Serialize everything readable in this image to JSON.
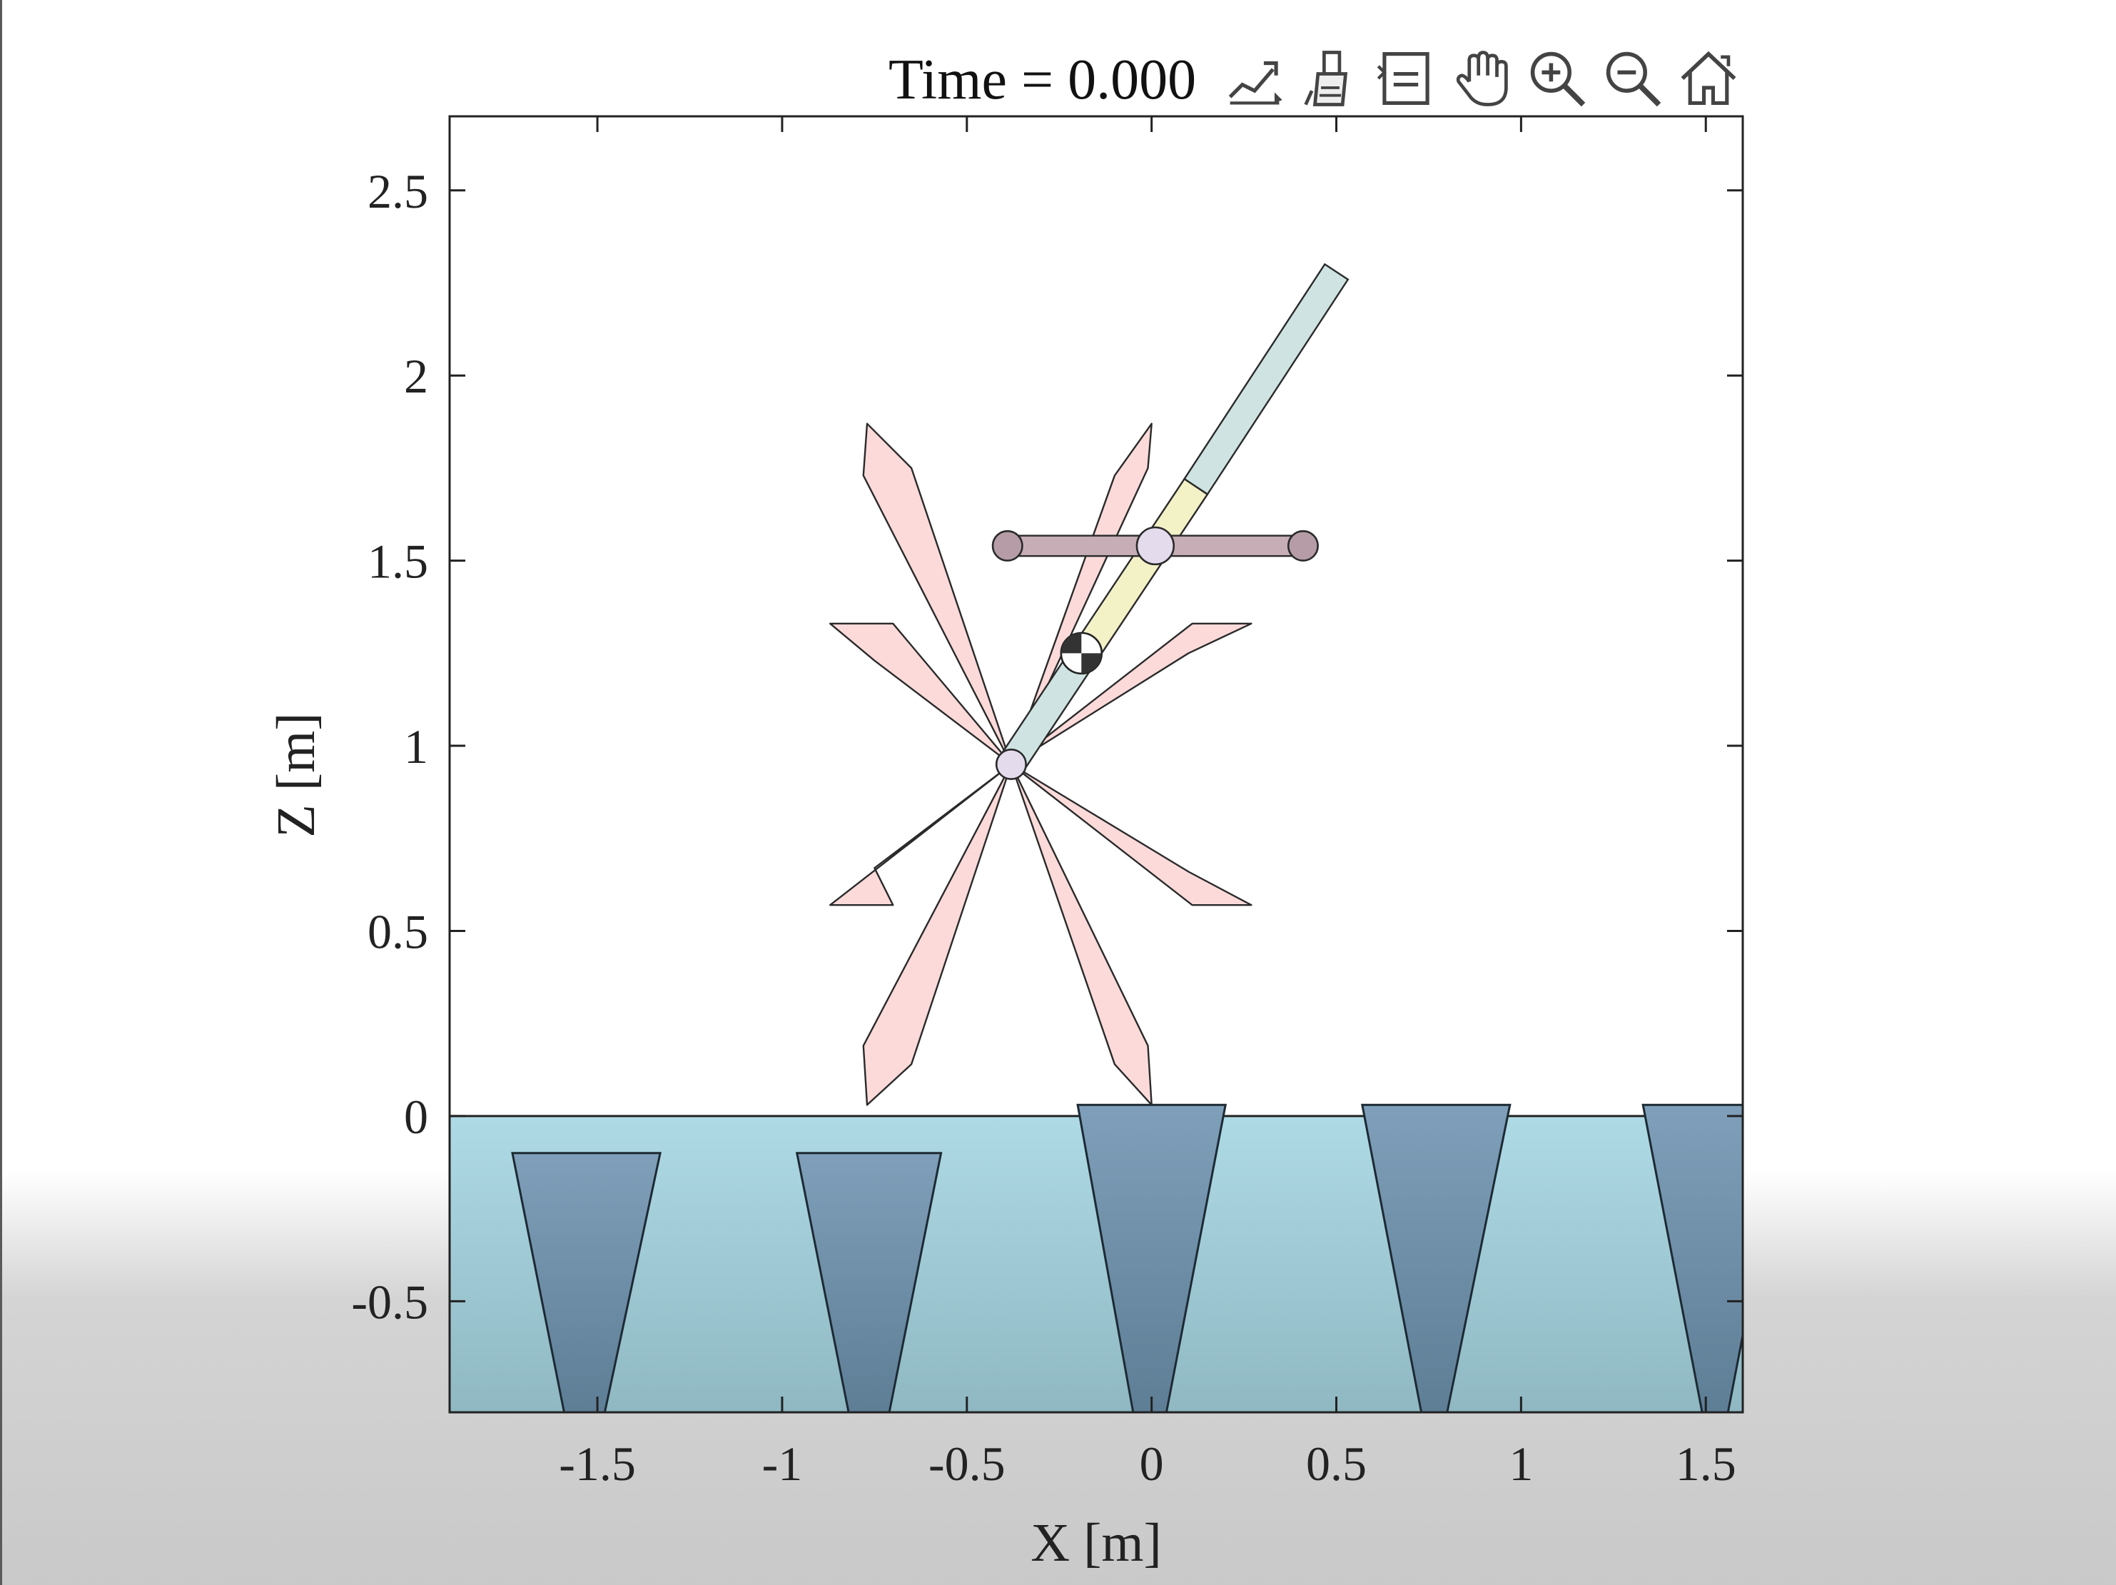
{
  "figure": {
    "title": "Time = 0.000"
  },
  "toolbar": {
    "buttons": [
      {
        "name": "export-icon"
      },
      {
        "name": "brush-icon"
      },
      {
        "name": "datatips-icon"
      },
      {
        "name": "pan-hand-icon"
      },
      {
        "name": "zoom-in-icon"
      },
      {
        "name": "zoom-out-icon"
      },
      {
        "name": "home-icon"
      }
    ]
  },
  "chart_data": {
    "type": "scatter",
    "title": "Time = 0.000",
    "xlabel": "X [m]",
    "ylabel": "Z [m]",
    "xlim": [
      -1.9,
      1.6
    ],
    "ylim": [
      -0.8,
      2.7
    ],
    "xticks": [
      -1.5,
      -1,
      -0.5,
      0,
      0.5,
      1,
      1.5
    ],
    "xtick_labels": [
      "-1.5",
      "-1",
      "-0.5",
      "0",
      "0.5",
      "1",
      "1.5"
    ],
    "yticks": [
      -0.5,
      0,
      0.5,
      1,
      1.5,
      2,
      2.5
    ],
    "ytick_labels": [
      "-0.5",
      "0",
      "0.5",
      "1",
      "1.5",
      "2",
      "2.5"
    ],
    "grid": false,
    "colors": {
      "water": "#aedae6",
      "water_bottom": "#8fb8c2",
      "obstacle": "#7f9fba",
      "obstacle_bottom": "#5e7e96",
      "blade": "#fcdada",
      "body": "#cfe4e2",
      "body_mid": "#f3f1c6",
      "bar": "#c7aeb6",
      "joint": "#e4dced",
      "joint_dark": "#b59ca7"
    },
    "ground_level": 0,
    "water_bottom": -0.8,
    "obstacles": [
      {
        "top_z": -0.1,
        "x_top": [
          -1.73,
          -1.33
        ],
        "x_bottom": [
          -1.59,
          -1.48
        ]
      },
      {
        "top_z": -0.1,
        "x_top": [
          -0.96,
          -0.57
        ],
        "x_bottom": [
          -0.82,
          -0.71
        ]
      },
      {
        "top_z": 0.03,
        "x_top": [
          -0.2,
          0.2
        ],
        "x_bottom": [
          -0.05,
          0.04
        ]
      },
      {
        "top_z": 0.03,
        "x_top": [
          0.57,
          0.97
        ],
        "x_bottom": [
          0.73,
          0.8
        ]
      },
      {
        "top_z": 0.03,
        "x_top": [
          1.33,
          1.72
        ],
        "x_bottom": [
          1.49,
          1.56
        ]
      }
    ],
    "wheel": {
      "hub": [
        -0.38,
        0.95
      ],
      "blades": [
        [
          [
            -0.38,
            0.95
          ],
          [
            -0.7,
            1.33
          ],
          [
            -0.87,
            1.33
          ],
          [
            -0.75,
            1.23
          ]
        ],
        [
          [
            -0.38,
            0.95
          ],
          [
            -0.65,
            1.75
          ],
          [
            -0.77,
            1.87
          ],
          [
            -0.78,
            1.73
          ]
        ],
        [
          [
            -0.38,
            0.95
          ],
          [
            -0.1,
            1.73
          ],
          [
            0.0,
            1.87
          ],
          [
            -0.01,
            1.75
          ]
        ],
        [
          [
            -0.38,
            0.95
          ],
          [
            0.1,
            1.25
          ],
          [
            0.27,
            1.33
          ],
          [
            0.11,
            1.33
          ]
        ],
        [
          [
            -0.38,
            0.95
          ],
          [
            0.1,
            0.66
          ],
          [
            0.27,
            0.57
          ],
          [
            0.11,
            0.57
          ]
        ],
        [
          [
            -0.38,
            0.95
          ],
          [
            -0.01,
            0.19
          ],
          [
            0.0,
            0.03
          ],
          [
            -0.1,
            0.14
          ]
        ],
        [
          [
            -0.38,
            0.95
          ],
          [
            -0.65,
            0.14
          ],
          [
            -0.77,
            0.03
          ],
          [
            -0.78,
            0.19
          ]
        ],
        [
          [
            -0.38,
            0.95
          ],
          [
            -0.87,
            0.57
          ],
          [
            -0.7,
            0.57
          ],
          [
            -0.75,
            0.67
          ]
        ]
      ]
    },
    "body": {
      "lower": [
        [
          -0.38,
          0.95
        ],
        [
          -0.18,
          1.25
        ]
      ],
      "middle": [
        [
          -0.18,
          1.25
        ],
        [
          0.12,
          1.7
        ]
      ],
      "upper": [
        [
          0.12,
          1.7
        ],
        [
          0.5,
          2.28
        ]
      ],
      "width": 0.075
    },
    "crossbar": {
      "left": [
        -0.39,
        1.54
      ],
      "right": [
        0.41,
        1.54
      ]
    },
    "joints": [
      {
        "x": -0.39,
        "z": 1.54,
        "r": 0.04
      },
      {
        "x": 0.41,
        "z": 1.54,
        "r": 0.04
      },
      {
        "x": 0.01,
        "z": 1.54,
        "r": 0.05
      },
      {
        "x": -0.38,
        "z": 0.95,
        "r": 0.04
      }
    ],
    "center_of_mass": {
      "x": -0.19,
      "z": 1.25
    }
  }
}
